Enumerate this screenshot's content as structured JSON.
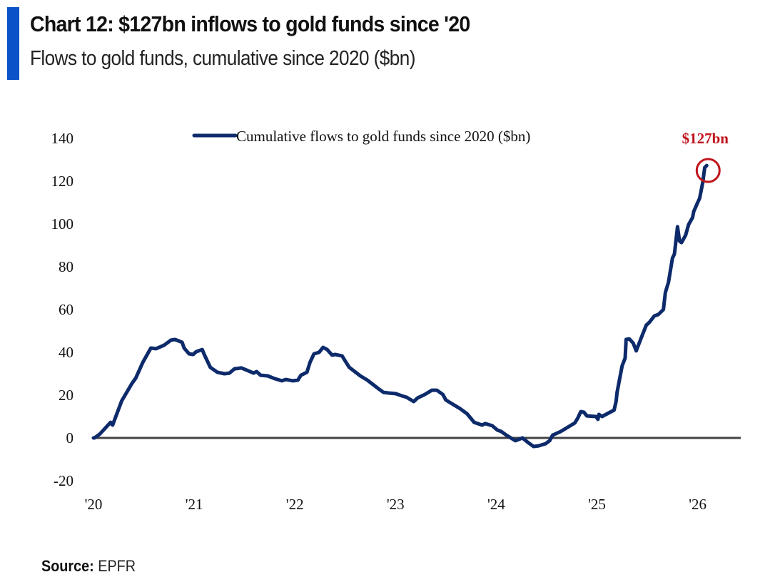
{
  "header": {
    "title": "Chart 12: $127bn inflows to gold funds since '20",
    "subtitle": "Flows to gold funds, cumulative since 2020 ($bn)",
    "accent_color": "#0a52c8"
  },
  "footer": {
    "source_label": "Source:",
    "source_value": "EPFR"
  },
  "chart_data": {
    "type": "line",
    "title": "Chart 12: $127bn inflows to gold funds since '20",
    "subtitle": "Flows to gold funds, cumulative since 2020 ($bn)",
    "xlabel": "",
    "ylabel": "",
    "xlim": [
      2020.0,
      2026.6
    ],
    "ylim": [
      -20,
      140
    ],
    "yticks": [
      140,
      120,
      100,
      80,
      60,
      40,
      20,
      0,
      -20
    ],
    "xticks": [
      {
        "value": 2020,
        "label": "'20"
      },
      {
        "value": 2021,
        "label": "'21"
      },
      {
        "value": 2022,
        "label": "'22"
      },
      {
        "value": 2023,
        "label": "'23"
      },
      {
        "value": 2024,
        "label": "'24"
      },
      {
        "value": 2025,
        "label": "'25"
      },
      {
        "value": 2026,
        "label": "'26"
      }
    ],
    "grid": false,
    "zero_line": true,
    "legend": {
      "position": "top-center",
      "entries": [
        "Cumulative flows to gold funds since 2020 ($bn)"
      ]
    },
    "annotation": {
      "text": "$127bn",
      "x": 2026.09,
      "y": 127,
      "color": "#c0141c",
      "marker": "circle"
    },
    "series": [
      {
        "name": "Cumulative flows to gold funds since 2020 ($bn)",
        "color": "#0d2a6b",
        "points": [
          [
            2020.0,
            0
          ],
          [
            2020.01,
            0
          ],
          [
            2020.06,
            1.7
          ],
          [
            2020.17,
            7.3
          ],
          [
            2020.19,
            6.0
          ],
          [
            2020.28,
            17.3
          ],
          [
            2020.38,
            25.3
          ],
          [
            2020.42,
            28.0
          ],
          [
            2020.49,
            35.3
          ],
          [
            2020.57,
            42.0
          ],
          [
            2020.62,
            41.7
          ],
          [
            2020.7,
            43.3
          ],
          [
            2020.77,
            45.7
          ],
          [
            2020.81,
            46.0
          ],
          [
            2020.88,
            44.7
          ],
          [
            2020.9,
            42.0
          ],
          [
            2020.95,
            39.3
          ],
          [
            2020.99,
            39.0
          ],
          [
            2021.02,
            40.3
          ],
          [
            2021.08,
            41.3
          ],
          [
            2021.1,
            39.0
          ],
          [
            2021.16,
            33.0
          ],
          [
            2021.23,
            30.7
          ],
          [
            2021.3,
            30.0
          ],
          [
            2021.35,
            30.3
          ],
          [
            2021.4,
            32.3
          ],
          [
            2021.47,
            32.7
          ],
          [
            2021.54,
            31.3
          ],
          [
            2021.59,
            30.3
          ],
          [
            2021.62,
            31.0
          ],
          [
            2021.66,
            29.3
          ],
          [
            2021.73,
            29.0
          ],
          [
            2021.8,
            27.7
          ],
          [
            2021.87,
            26.7
          ],
          [
            2021.91,
            27.3
          ],
          [
            2021.98,
            26.7
          ],
          [
            2022.03,
            27.0
          ],
          [
            2022.06,
            29.3
          ],
          [
            2022.12,
            30.7
          ],
          [
            2022.15,
            35.3
          ],
          [
            2022.19,
            39.3
          ],
          [
            2022.24,
            40.0
          ],
          [
            2022.28,
            42.3
          ],
          [
            2022.32,
            41.3
          ],
          [
            2022.37,
            38.7
          ],
          [
            2022.4,
            39.0
          ],
          [
            2022.47,
            38.3
          ],
          [
            2022.49,
            36.7
          ],
          [
            2022.54,
            33.0
          ],
          [
            2022.65,
            29.0
          ],
          [
            2022.72,
            27.0
          ],
          [
            2022.83,
            23.0
          ],
          [
            2022.88,
            21.3
          ],
          [
            2022.93,
            21.0
          ],
          [
            2023.0,
            20.7
          ],
          [
            2023.06,
            19.7
          ],
          [
            2023.11,
            19.0
          ],
          [
            2023.18,
            17.0
          ],
          [
            2023.22,
            18.7
          ],
          [
            2023.29,
            20.3
          ],
          [
            2023.36,
            22.3
          ],
          [
            2023.41,
            22.3
          ],
          [
            2023.47,
            20.3
          ],
          [
            2023.5,
            17.7
          ],
          [
            2023.57,
            15.7
          ],
          [
            2023.64,
            13.7
          ],
          [
            2023.71,
            11.3
          ],
          [
            2023.78,
            7.3
          ],
          [
            2023.86,
            6.0
          ],
          [
            2023.89,
            6.7
          ],
          [
            2023.96,
            5.7
          ],
          [
            2024.01,
            3.7
          ],
          [
            2024.05,
            3.0
          ],
          [
            2024.1,
            1.3
          ],
          [
            2024.19,
            -1.3
          ],
          [
            2024.26,
            0
          ],
          [
            2024.32,
            -2.3
          ],
          [
            2024.37,
            -4.0
          ],
          [
            2024.42,
            -3.7
          ],
          [
            2024.49,
            -2.7
          ],
          [
            2024.53,
            -1.3
          ],
          [
            2024.56,
            1.3
          ],
          [
            2024.64,
            3.0
          ],
          [
            2024.71,
            5.0
          ],
          [
            2024.78,
            7.0
          ],
          [
            2024.81,
            9.3
          ],
          [
            2024.84,
            12.3
          ],
          [
            2024.87,
            12.0
          ],
          [
            2024.9,
            10.3
          ],
          [
            2024.99,
            10.0
          ],
          [
            2025.01,
            8.7
          ],
          [
            2025.02,
            11.0
          ],
          [
            2025.05,
            10.0
          ],
          [
            2025.13,
            12.0
          ],
          [
            2025.17,
            13.0
          ],
          [
            2025.19,
            17.0
          ],
          [
            2025.2,
            21.3
          ],
          [
            2025.25,
            33.7
          ],
          [
            2025.28,
            37.3
          ],
          [
            2025.29,
            46.0
          ],
          [
            2025.32,
            46.3
          ],
          [
            2025.36,
            44.3
          ],
          [
            2025.39,
            40.7
          ],
          [
            2025.45,
            48.0
          ],
          [
            2025.49,
            52.7
          ],
          [
            2025.52,
            54.0
          ],
          [
            2025.57,
            57.0
          ],
          [
            2025.61,
            57.7
          ],
          [
            2025.66,
            60.0
          ],
          [
            2025.68,
            68.0
          ],
          [
            2025.71,
            72.7
          ],
          [
            2025.75,
            84.0
          ],
          [
            2025.77,
            86.0
          ],
          [
            2025.8,
            98.7
          ],
          [
            2025.82,
            92.0
          ],
          [
            2025.84,
            91.3
          ],
          [
            2025.88,
            94.7
          ],
          [
            2025.91,
            99.7
          ],
          [
            2025.95,
            103.0
          ],
          [
            2025.96,
            105.7
          ],
          [
            2026.0,
            110.0
          ],
          [
            2026.02,
            112.0
          ],
          [
            2026.05,
            119.3
          ],
          [
            2026.07,
            126.3
          ],
          [
            2026.09,
            127.3
          ]
        ]
      }
    ]
  }
}
